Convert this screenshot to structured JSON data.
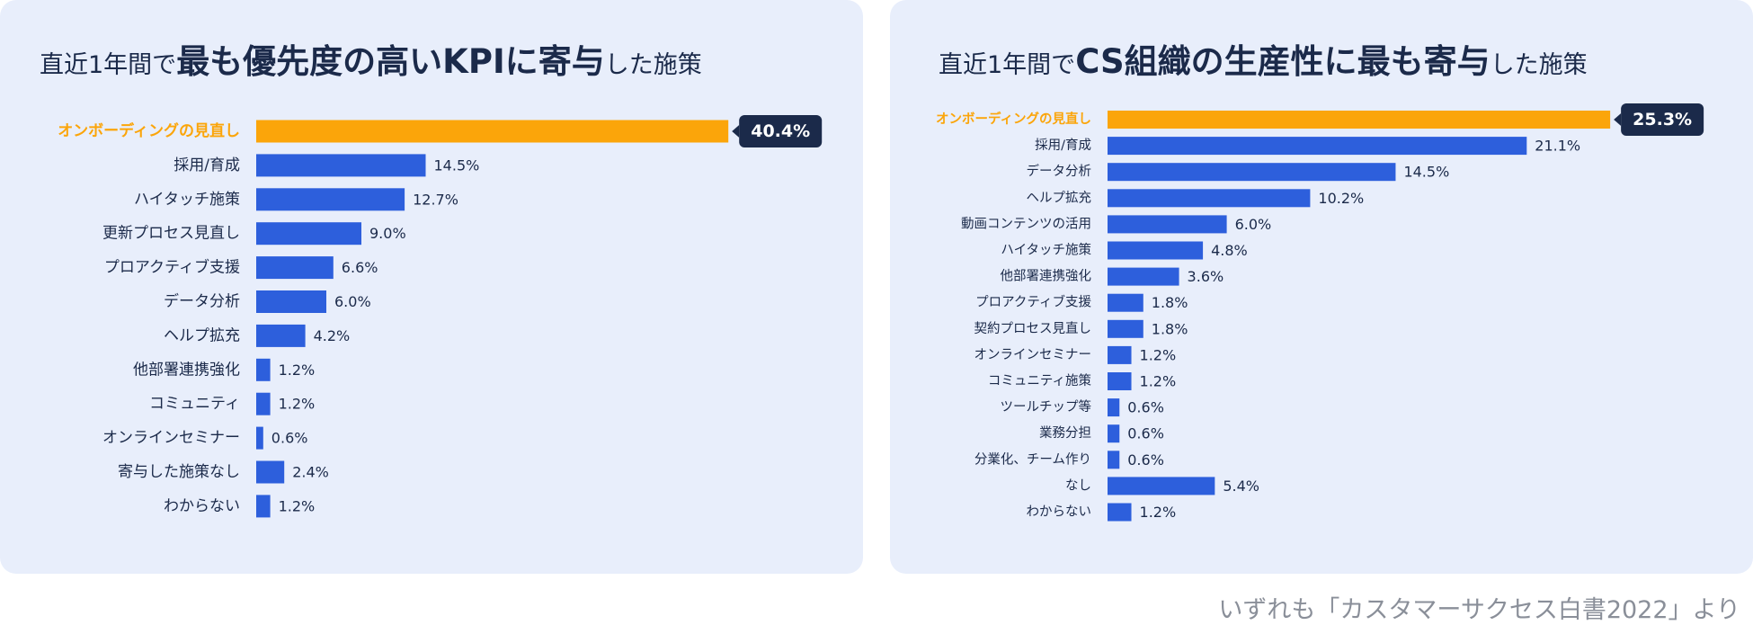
{
  "colors": {
    "panel_bg": "#e8eefb",
    "bar": "#2d5fdc",
    "highlight": "#fba50a",
    "badge": "#1b2a4a",
    "text": "#1b2a4a",
    "source": "#8a8f99"
  },
  "footer": {
    "source": "いずれも「カスタマーサクセス白書2022」より"
  },
  "chart_data": [
    {
      "type": "bar",
      "orientation": "horizontal",
      "title": "直近1年間で最も優先度の高いKPIに寄与した施策",
      "title_parts": {
        "pre": "直近1年間で",
        "main": "最も優先度の高いKPIに寄与",
        "post": "した施策"
      },
      "unit": "%",
      "categories": [
        "オンボーディングの見直し",
        "採用/育成",
        "ハイタッチ施策",
        "更新プロセス見直し",
        "プロアクティブ支援",
        "データ分析",
        "ヘルプ拡充",
        "他部署連携強化",
        "コミュニティ",
        "オンラインセミナー",
        "寄与した施策なし",
        "わからない"
      ],
      "values": [
        40.4,
        14.5,
        12.7,
        9.0,
        6.6,
        6.0,
        4.2,
        1.2,
        1.2,
        0.6,
        2.4,
        1.2
      ],
      "labels": [
        "40.4%",
        "14.5%",
        "12.7%",
        "9.0%",
        "6.6%",
        "6.0%",
        "4.2%",
        "1.2%",
        "1.2%",
        "0.6%",
        "2.4%",
        "1.2%"
      ],
      "highlight_index": 0
    },
    {
      "type": "bar",
      "orientation": "horizontal",
      "title": "直近1年間でCS組織の生産性に最も寄与した施策",
      "title_parts": {
        "pre": "直近1年間で",
        "main": "CS組織の生産性に最も寄与",
        "post": "した施策"
      },
      "unit": "%",
      "categories": [
        "オンボーディングの見直し",
        "採用/育成",
        "データ分析",
        "ヘルプ拡充",
        "動画コンテンツの活用",
        "ハイタッチ施策",
        "他部署連携強化",
        "プロアクティブ支援",
        "契約プロセス見直し",
        "オンラインセミナー",
        "コミュニティ施策",
        "ツールチップ等",
        "業務分担",
        "分業化、チーム作り",
        "なし",
        "わからない"
      ],
      "values": [
        25.3,
        21.1,
        14.5,
        10.2,
        6.0,
        4.8,
        3.6,
        1.8,
        1.8,
        1.2,
        1.2,
        0.6,
        0.6,
        0.6,
        5.4,
        1.2
      ],
      "labels": [
        "25.3%",
        "21.1%",
        "14.5%",
        "10.2%",
        "6.0%",
        "4.8%",
        "3.6%",
        "1.8%",
        "1.8%",
        "1.2%",
        "1.2%",
        "0.6%",
        "0.6%",
        "0.6%",
        "5.4%",
        "1.2%"
      ],
      "highlight_index": 0
    }
  ]
}
